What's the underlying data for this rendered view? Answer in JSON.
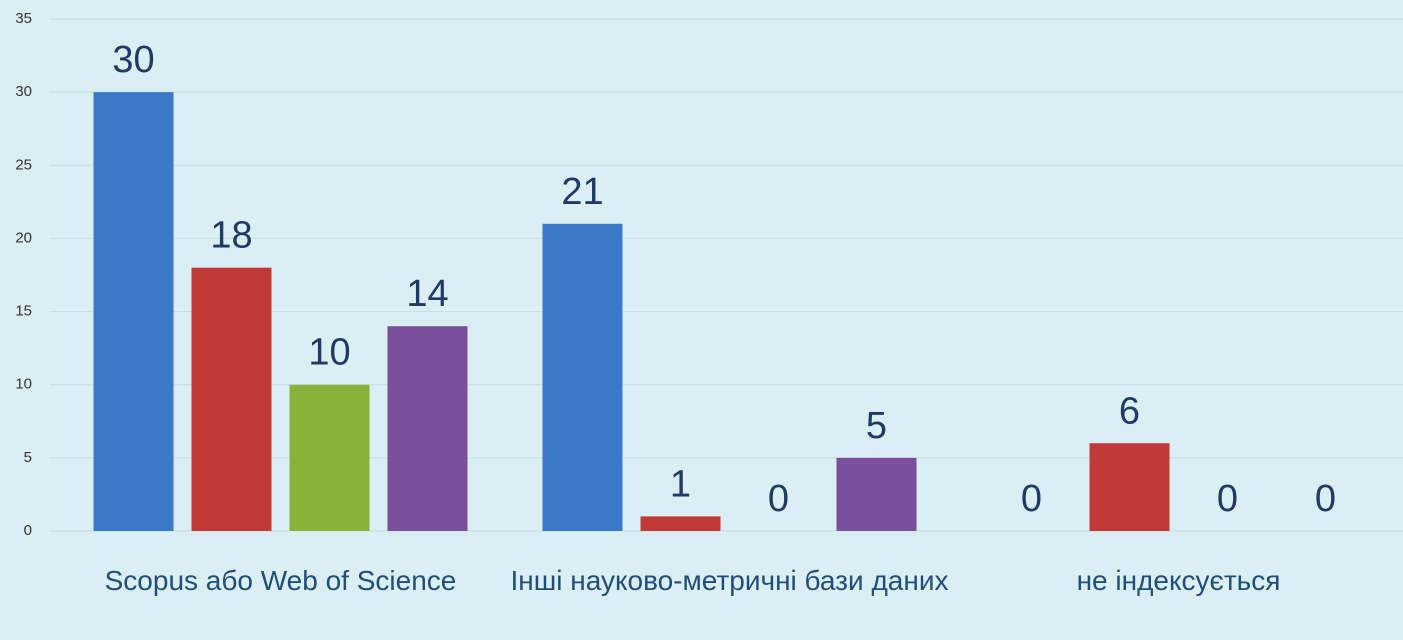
{
  "chart_data": {
    "type": "bar",
    "categories": [
      "Scopus або Web of Science",
      "Інші науково-метричні бази даних",
      "не індексується"
    ],
    "series": [
      {
        "color": "#3a78c9",
        "values": [
          30,
          21,
          0
        ]
      },
      {
        "color": "#c23a38",
        "values": [
          18,
          1,
          6
        ]
      },
      {
        "color": "#8bb13a",
        "values": [
          10,
          0,
          0
        ]
      },
      {
        "color": "#7a4f9c",
        "values": [
          14,
          5,
          0
        ]
      }
    ],
    "ylim": [
      0,
      35
    ],
    "yticks": [
      0,
      5,
      10,
      15,
      20,
      25,
      30,
      35
    ],
    "grid": true
  }
}
